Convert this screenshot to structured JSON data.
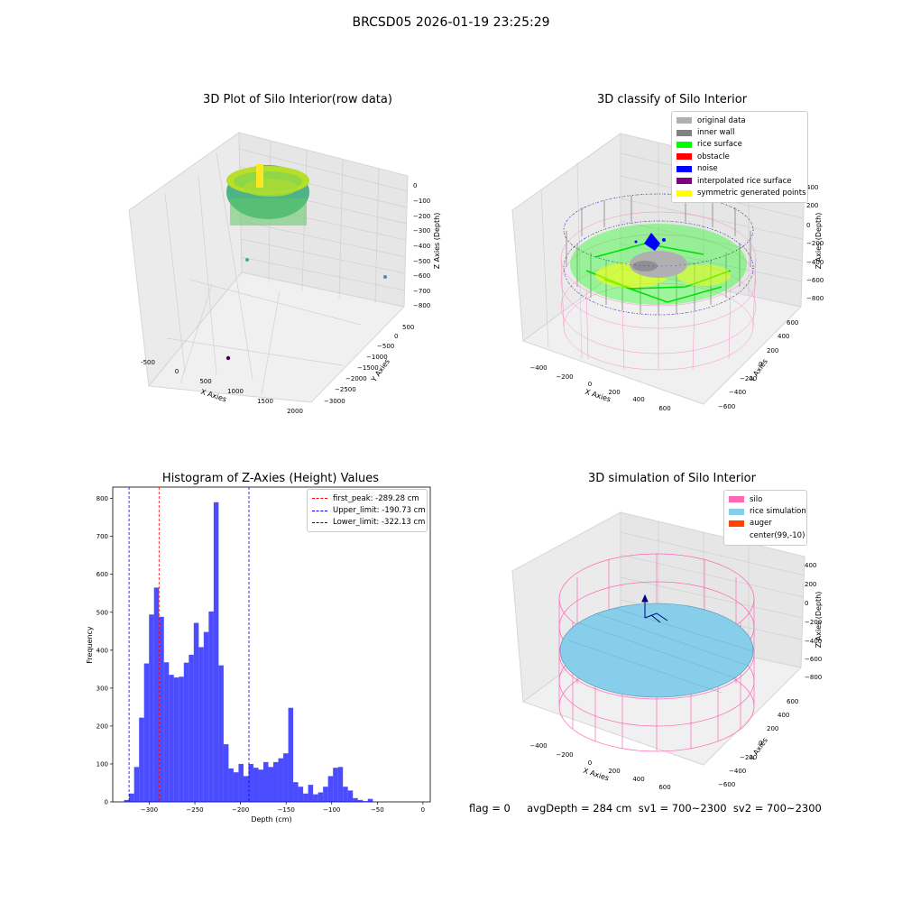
{
  "figure": {
    "suptitle": "BRCSD05 2026-01-19 23:25:29",
    "footer": "flag = 0     avgDepth = 284 cm  sv1 = 700~2300  sv2 = 700~2300"
  },
  "plots": {
    "raw": {
      "title": "3D Plot of Silo Interior(row data)",
      "xlabel": "X Axies",
      "ylabel": "Y Axies",
      "zlabel": "Z Axies (Depth)",
      "xticks": [
        "-500",
        "0",
        "500",
        "1000",
        "1500",
        "2000"
      ],
      "yticks": [
        "500",
        "0",
        "−500",
        "−1000",
        "−1500",
        "−2000",
        "−2500",
        "−3000"
      ],
      "zticks": [
        "0",
        "−100",
        "−200",
        "−300",
        "−400",
        "−500",
        "−600",
        "−700",
        "−800"
      ]
    },
    "classify": {
      "title": "3D classify of Silo Interior",
      "xlabel": "X Axies",
      "ylabel": "Y Axies",
      "zlabel": "Z Axies (Depth)",
      "xticks": [
        "−400",
        "−200",
        "0",
        "200",
        "400",
        "600"
      ],
      "yticks": [
        "600",
        "400",
        "200",
        "0",
        "−200",
        "−400",
        "−600"
      ],
      "zticks": [
        "400",
        "200",
        "0",
        "−200",
        "−400",
        "−600",
        "−800"
      ],
      "legend": [
        {
          "label": "original data",
          "color": "#b0b0b0"
        },
        {
          "label": "inner wall",
          "color": "#808080"
        },
        {
          "label": "rice surface",
          "color": "#00ff00"
        },
        {
          "label": "obstacle",
          "color": "#ff0000"
        },
        {
          "label": "noise",
          "color": "#0000ff"
        },
        {
          "label": "interpolated rice surface",
          "color": "#800080"
        },
        {
          "label": "symmetric generated points",
          "color": "#ffff00"
        }
      ]
    },
    "simulation": {
      "title": "3D simulation of Silo Interior",
      "xlabel": "X Axies",
      "ylabel": "Y Axies",
      "zlabel": "Z Axies (Depth)",
      "xticks": [
        "−400",
        "−200",
        "0",
        "200",
        "400",
        "600"
      ],
      "yticks": [
        "600",
        "400",
        "200",
        "0",
        "−200",
        "−400",
        "−600"
      ],
      "zticks": [
        "400",
        "200",
        "0",
        "−200",
        "−400",
        "−600",
        "−800"
      ],
      "legend": [
        {
          "label": "silo",
          "color": "#ff69b4"
        },
        {
          "label": "rice simulation",
          "color": "#87ceeb"
        },
        {
          "label": "auger",
          "color": "#ff4500"
        },
        {
          "label": "center(99,-10)",
          "color": "#ffffff"
        }
      ]
    }
  },
  "chart_data": {
    "type": "bar",
    "title": "Histogram of Z-Axies (Height) Values",
    "xlabel": "Depth (cm)",
    "ylabel": "Frequency",
    "xlim": [
      -340,
      8
    ],
    "ylim": [
      0,
      830
    ],
    "xticks": [
      -300,
      -250,
      -200,
      -150,
      -100,
      -50,
      0
    ],
    "yticks": [
      0,
      100,
      200,
      300,
      400,
      500,
      600,
      700,
      800
    ],
    "bar_color": "#0000ff",
    "bin_width": 5.45,
    "bin_start": -327.5,
    "values": [
      5,
      22,
      92,
      222,
      365,
      494,
      565,
      488,
      368,
      335,
      328,
      330,
      367,
      388,
      472,
      408,
      448,
      502,
      790,
      360,
      152,
      88,
      78,
      100,
      68,
      100,
      90,
      85,
      105,
      92,
      105,
      115,
      128,
      248,
      52,
      40,
      22,
      45,
      20,
      25,
      40,
      68,
      90,
      92,
      40,
      30,
      10,
      5,
      2,
      8
    ],
    "vlines": [
      {
        "label": "first_peak: -289.28 cm",
        "x": -289.28,
        "color": "#ff0000"
      },
      {
        "label": "Upper_limit: -190.73 cm",
        "x": -190.73,
        "color": "#0000ff"
      },
      {
        "label": "Lower_limit: -322.13 cm",
        "x": -322.13,
        "color": "#0000ff"
      }
    ]
  }
}
